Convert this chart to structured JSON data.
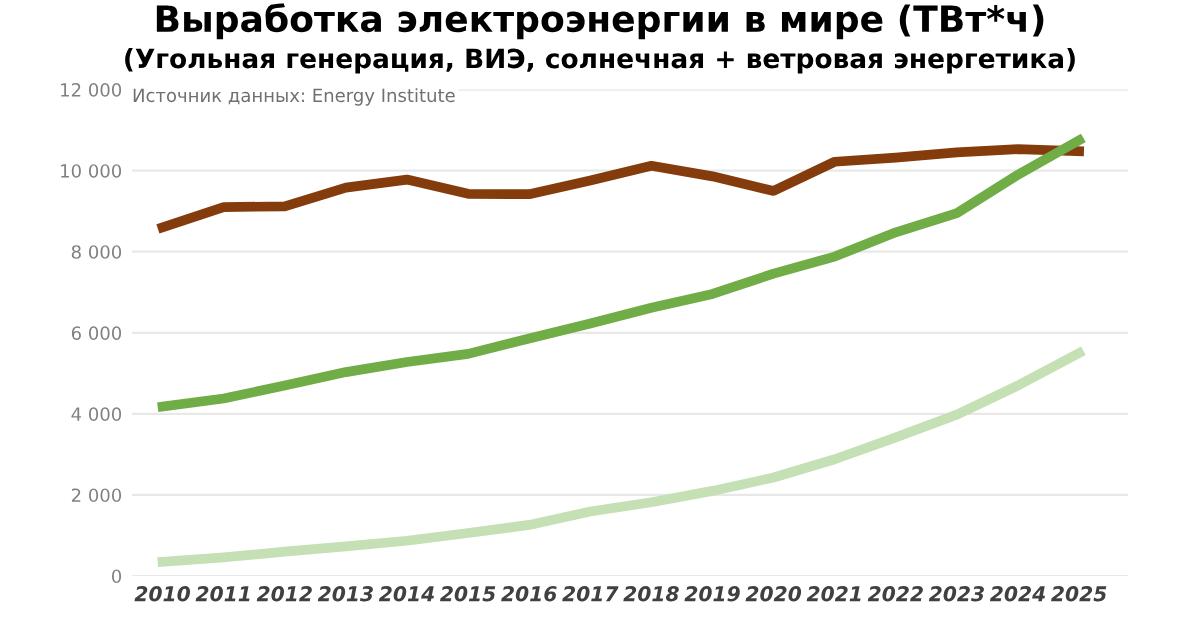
{
  "chart_data": {
    "type": "line",
    "title": "Выработка электроэнергии в мире (ТВт*ч)",
    "subtitle": "(Угольная генерация, ВИЭ, солнечная + ветровая энергетика)",
    "annotations": [
      "Источник данных: Energy Institute"
    ],
    "categories": [
      "2010",
      "2011",
      "2012",
      "2013",
      "2014",
      "2015",
      "2016",
      "2017",
      "2018",
      "2019",
      "2020",
      "2021",
      "2022",
      "2023",
      "2024",
      "2025"
    ],
    "series": [
      {
        "color": "#843c0c",
        "values": [
          8600,
          9100,
          9120,
          9580,
          9780,
          9430,
          9420,
          9760,
          10120,
          9860,
          9500,
          10220,
          10320,
          10450,
          10530,
          10480
        ]
      },
      {
        "color": "#70ad47",
        "values": [
          4180,
          4380,
          4700,
          5030,
          5280,
          5480,
          5860,
          6230,
          6620,
          6960,
          7460,
          7880,
          8480,
          8950,
          9900,
          10750
        ]
      },
      {
        "color": "#c5e0b4",
        "values": [
          350,
          460,
          600,
          730,
          870,
          1060,
          1260,
          1590,
          1820,
          2100,
          2430,
          2880,
          3420,
          3980,
          4700,
          5500
        ]
      }
    ],
    "ylim": [
      0,
      12000
    ],
    "yticks": [
      {
        "value": 0,
        "label": "0"
      },
      {
        "value": 2000,
        "label": "2 000"
      },
      {
        "value": 4000,
        "label": "4 000"
      },
      {
        "value": 6000,
        "label": "6 000"
      },
      {
        "value": 8000,
        "label": "8 000"
      },
      {
        "value": 10000,
        "label": "10 000"
      },
      {
        "value": 12000,
        "label": "12 000"
      }
    ],
    "grid": "y",
    "marker": "none",
    "line_style": "solid"
  }
}
